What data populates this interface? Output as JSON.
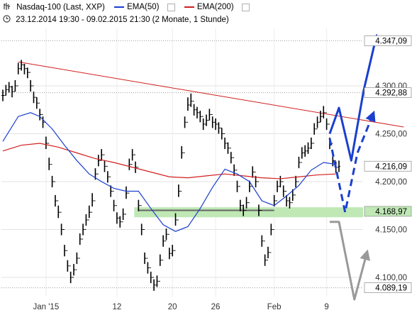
{
  "header": {
    "symbol": "Nasdaq-100 (Last, XXP)",
    "period": "23.12.2014 19:30 - 09.02.2015 21:30 (2 Monate, 1 Stunde)",
    "legend": [
      {
        "name": "EMA(50)",
        "color": "#1a3fcf"
      },
      {
        "name": "EMA(200)",
        "color": "#d21f1f"
      }
    ]
  },
  "chart_data": {
    "type": "line",
    "ylim": [
      4080,
      4360
    ],
    "y_ticks": [
      "4.347,09",
      "4.300,00",
      "4.292,88",
      "4.250,00",
      "4.216,09",
      "4.200,00",
      "4.168,97",
      "4.150,00",
      "4.100,00",
      "4.089,19"
    ],
    "y_tick_values": [
      4347.09,
      4300,
      4292.88,
      4250,
      4216.09,
      4200,
      4168.97,
      4150,
      4100,
      4089.19
    ],
    "highlighted_ticks": [
      "4.347,09",
      "4.292,88",
      "4.216,09",
      "4.168,97",
      "4.089,19"
    ],
    "x_ticks": [
      "Jan '15",
      "12",
      "20",
      "26",
      "Feb",
      "9"
    ],
    "x_tick_index": [
      14,
      37,
      55,
      69,
      88,
      105
    ],
    "price_series": {
      "name": "Nasdaq-100",
      "color": "#000000",
      "close": [
        4290,
        4296,
        4299,
        4294,
        4300,
        4318,
        4322,
        4318,
        4314,
        4300,
        4288,
        4282,
        4270,
        4262,
        4240,
        4218,
        4200,
        4180,
        4168,
        4150,
        4128,
        4112,
        4100,
        4108,
        4120,
        4140,
        4150,
        4160,
        4168,
        4180,
        4208,
        4222,
        4228,
        4216,
        4205,
        4190,
        4175,
        4162,
        4158,
        4166,
        4188,
        4218,
        4228,
        4215,
        4175,
        4150,
        4120,
        4110,
        4100,
        4092,
        4096,
        4118,
        4138,
        4145,
        4125,
        4128,
        4160,
        4190,
        4230,
        4262,
        4280,
        4284,
        4275,
        4272,
        4268,
        4260,
        4264,
        4270,
        4262,
        4260,
        4256,
        4250,
        4240,
        4235,
        4225,
        4212,
        4195,
        4175,
        4170,
        4178,
        4195,
        4210,
        4200,
        4170,
        4138,
        4118,
        4126,
        4150,
        4180,
        4195,
        4200,
        4190,
        4180,
        4178,
        4186,
        4200,
        4220,
        4230,
        4232,
        4235,
        4240,
        4255,
        4262,
        4268,
        4272,
        4260,
        4240,
        4222,
        4215,
        4216
      ],
      "high": [
        4296,
        4301,
        4304,
        4300,
        4306,
        4324,
        4327,
        4323,
        4319,
        4306,
        4294,
        4288,
        4276,
        4268,
        4247,
        4225,
        4206,
        4186,
        4175,
        4156,
        4134,
        4118,
        4106,
        4114,
        4126,
        4146,
        4156,
        4166,
        4175,
        4188,
        4214,
        4228,
        4234,
        4222,
        4211,
        4196,
        4181,
        4168,
        4164,
        4172,
        4195,
        4224,
        4234,
        4221,
        4181,
        4156,
        4126,
        4116,
        4106,
        4098,
        4102,
        4124,
        4144,
        4151,
        4131,
        4134,
        4167,
        4197,
        4237,
        4268,
        4288,
        4292,
        4281,
        4278,
        4274,
        4266,
        4270,
        4276,
        4268,
        4266,
        4262,
        4256,
        4246,
        4241,
        4231,
        4218,
        4201,
        4181,
        4176,
        4184,
        4201,
        4216,
        4206,
        4176,
        4144,
        4124,
        4132,
        4156,
        4186,
        4201,
        4206,
        4196,
        4186,
        4184,
        4192,
        4206,
        4226,
        4236,
        4238,
        4241,
        4246,
        4261,
        4268,
        4274,
        4279,
        4266,
        4246,
        4228,
        4221,
        4222
      ],
      "low": [
        4284,
        4290,
        4293,
        4288,
        4294,
        4312,
        4316,
        4312,
        4308,
        4294,
        4282,
        4276,
        4264,
        4256,
        4234,
        4212,
        4194,
        4174,
        4162,
        4144,
        4122,
        4106,
        4094,
        4102,
        4114,
        4134,
        4144,
        4154,
        4162,
        4174,
        4202,
        4216,
        4222,
        4210,
        4199,
        4184,
        4169,
        4156,
        4152,
        4160,
        4182,
        4212,
        4222,
        4209,
        4169,
        4144,
        4114,
        4104,
        4094,
        4086,
        4090,
        4112,
        4132,
        4139,
        4119,
        4122,
        4154,
        4184,
        4224,
        4256,
        4274,
        4278,
        4269,
        4266,
        4262,
        4254,
        4258,
        4264,
        4256,
        4254,
        4250,
        4244,
        4234,
        4229,
        4219,
        4206,
        4189,
        4169,
        4164,
        4172,
        4189,
        4204,
        4194,
        4164,
        4132,
        4112,
        4120,
        4144,
        4174,
        4189,
        4194,
        4184,
        4174,
        4172,
        4180,
        4194,
        4214,
        4224,
        4226,
        4229,
        4234,
        4249,
        4256,
        4262,
        4266,
        4254,
        4234,
        4216,
        4209,
        4210
      ]
    },
    "ema50": {
      "name": "EMA(50)",
      "color": "#1a3fcf",
      "x": [
        0,
        5,
        9,
        12,
        16,
        20,
        24,
        28,
        32,
        36,
        40,
        44,
        48,
        52,
        56,
        60,
        64,
        68,
        72,
        76,
        80,
        84,
        88,
        92,
        96,
        100,
        104,
        108
      ],
      "y": [
        4242,
        4268,
        4272,
        4268,
        4255,
        4238,
        4222,
        4208,
        4200,
        4193,
        4190,
        4190,
        4172,
        4155,
        4148,
        4153,
        4172,
        4194,
        4213,
        4208,
        4200,
        4180,
        4175,
        4185,
        4196,
        4212,
        4220,
        4218
      ]
    },
    "ema200": {
      "name": "EMA(200)",
      "color": "#d21f1f",
      "x": [
        0,
        6,
        12,
        18,
        24,
        30,
        36,
        42,
        48,
        54,
        60,
        66,
        72,
        78,
        84,
        90,
        96,
        102,
        108
      ],
      "y": [
        4232,
        4238,
        4240,
        4236,
        4230,
        4224,
        4220,
        4215,
        4210,
        4205,
        4204,
        4206,
        4208,
        4206,
        4204,
        4203,
        4205,
        4207,
        4208
      ]
    },
    "resistance_line": {
      "color": "#d21f1f",
      "points": [
        [
          5,
          4325
        ],
        [
          130,
          4257
        ]
      ]
    },
    "support_line": {
      "color": "#666666",
      "points": [
        [
          44,
          4170
        ],
        [
          88,
          4170
        ]
      ]
    },
    "support_zone": {
      "range": [
        4165,
        4171
      ],
      "color": "#bfe8b5"
    },
    "scenario_arrows": [
      {
        "style": "solid",
        "color": "#1a3fcf",
        "points": [
          [
            106,
            4250
          ],
          [
            109,
            4277
          ],
          [
            113,
            4222
          ],
          [
            117,
            4295
          ],
          [
            121,
            4350
          ]
        ]
      },
      {
        "style": "dashed",
        "color": "#1a3fcf",
        "points": [
          [
            106,
            4245
          ],
          [
            111,
            4168
          ],
          [
            115,
            4230
          ],
          [
            120,
            4270
          ]
        ]
      },
      {
        "style": "solid",
        "color": "#999999",
        "points": [
          [
            106,
            4158
          ],
          [
            109,
            4158
          ],
          [
            114,
            4077
          ],
          [
            118,
            4125
          ]
        ]
      }
    ],
    "grid": true,
    "dotted_levels": [
      4292.88,
      4347.09,
      4089.19
    ]
  }
}
